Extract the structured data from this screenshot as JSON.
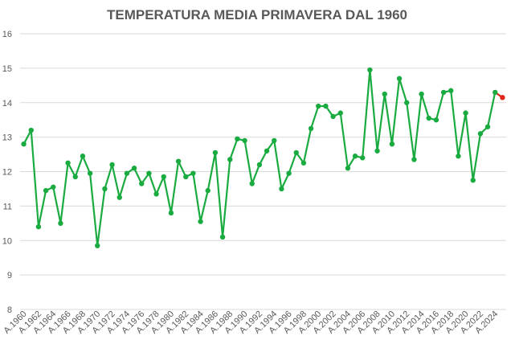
{
  "chart_data": {
    "type": "line",
    "title": "TEMPERATURA MEDIA PRIMAVERA DAL 1960",
    "xlabel": "",
    "ylabel": "",
    "ylim": [
      8,
      16
    ],
    "yticks": [
      8,
      9,
      10,
      11,
      12,
      13,
      14,
      15,
      16
    ],
    "grid": true,
    "legend": "none",
    "line_color": "#1aab40",
    "highlight_color": "#e0251b",
    "x": [
      "A.1960",
      "A.1961",
      "A.1962",
      "A.1963",
      "A.1964",
      "A.1965",
      "A.1966",
      "A.1967",
      "A.1968",
      "A.1969",
      "A.1970",
      "A.1971",
      "A.1972",
      "A.1973",
      "A.1974",
      "A.1975",
      "A.1976",
      "A.1977",
      "A.1978",
      "A.1979",
      "A.1980",
      "A.1981",
      "A.1982",
      "A.1983",
      "A.1984",
      "A.1985",
      "A.1986",
      "A.1987",
      "A.1988",
      "A.1989",
      "A.1990",
      "A.1991",
      "A.1992",
      "A.1993",
      "A.1994",
      "A.1995",
      "A.1996",
      "A.1997",
      "A.1998",
      "A.1999",
      "A.2000",
      "A.2001",
      "A.2002",
      "A.2003",
      "A.2004",
      "A.2005",
      "A.2006",
      "A.2007",
      "A.2008",
      "A.2009",
      "A.2010",
      "A.2011",
      "A.2012",
      "A.2013",
      "A.2014",
      "A.2015",
      "A.2016",
      "A.2017",
      "A.2018",
      "A.2019",
      "A.2020",
      "A.2021",
      "A.2022",
      "A.2023",
      "A.2024",
      "A.2025"
    ],
    "xtick_labels": [
      "A.1960",
      "A.1962",
      "A.1964",
      "A.1966",
      "A.1968",
      "A.1970",
      "A.1972",
      "A.1974",
      "A.1976",
      "A.1978",
      "A.1980",
      "A.1982",
      "A.1984",
      "A.1986",
      "A.1988",
      "A.1990",
      "A.1992",
      "A.1994",
      "A.1996",
      "A.1998",
      "A.2000",
      "A.2002",
      "A.2004",
      "A.2006",
      "A.2008",
      "A.2010",
      "A.2012",
      "A.2014",
      "A.2016",
      "A.2018",
      "A.2020",
      "A.2022",
      "A.2024"
    ],
    "series": [
      {
        "values": [
          12.8,
          13.2,
          10.4,
          11.45,
          11.55,
          10.5,
          12.25,
          11.85,
          12.45,
          11.95,
          9.85,
          11.5,
          12.2,
          11.25,
          11.95,
          12.1,
          11.65,
          11.95,
          11.35,
          11.85,
          10.8,
          12.3,
          11.85,
          11.95,
          10.55,
          11.45,
          12.55,
          10.1,
          12.35,
          12.95,
          12.9,
          11.65,
          12.2,
          12.6,
          12.9,
          11.5,
          11.95,
          12.55,
          12.25,
          13.25,
          13.9,
          13.9,
          13.6,
          13.7,
          12.1,
          12.45,
          12.4,
          14.95,
          12.6,
          14.25,
          12.8,
          14.7,
          14.0,
          12.35,
          14.25,
          13.55,
          13.5,
          14.3,
          14.35,
          12.45,
          13.7,
          11.75,
          13.1,
          13.3,
          14.3,
          14.15
        ]
      }
    ]
  }
}
